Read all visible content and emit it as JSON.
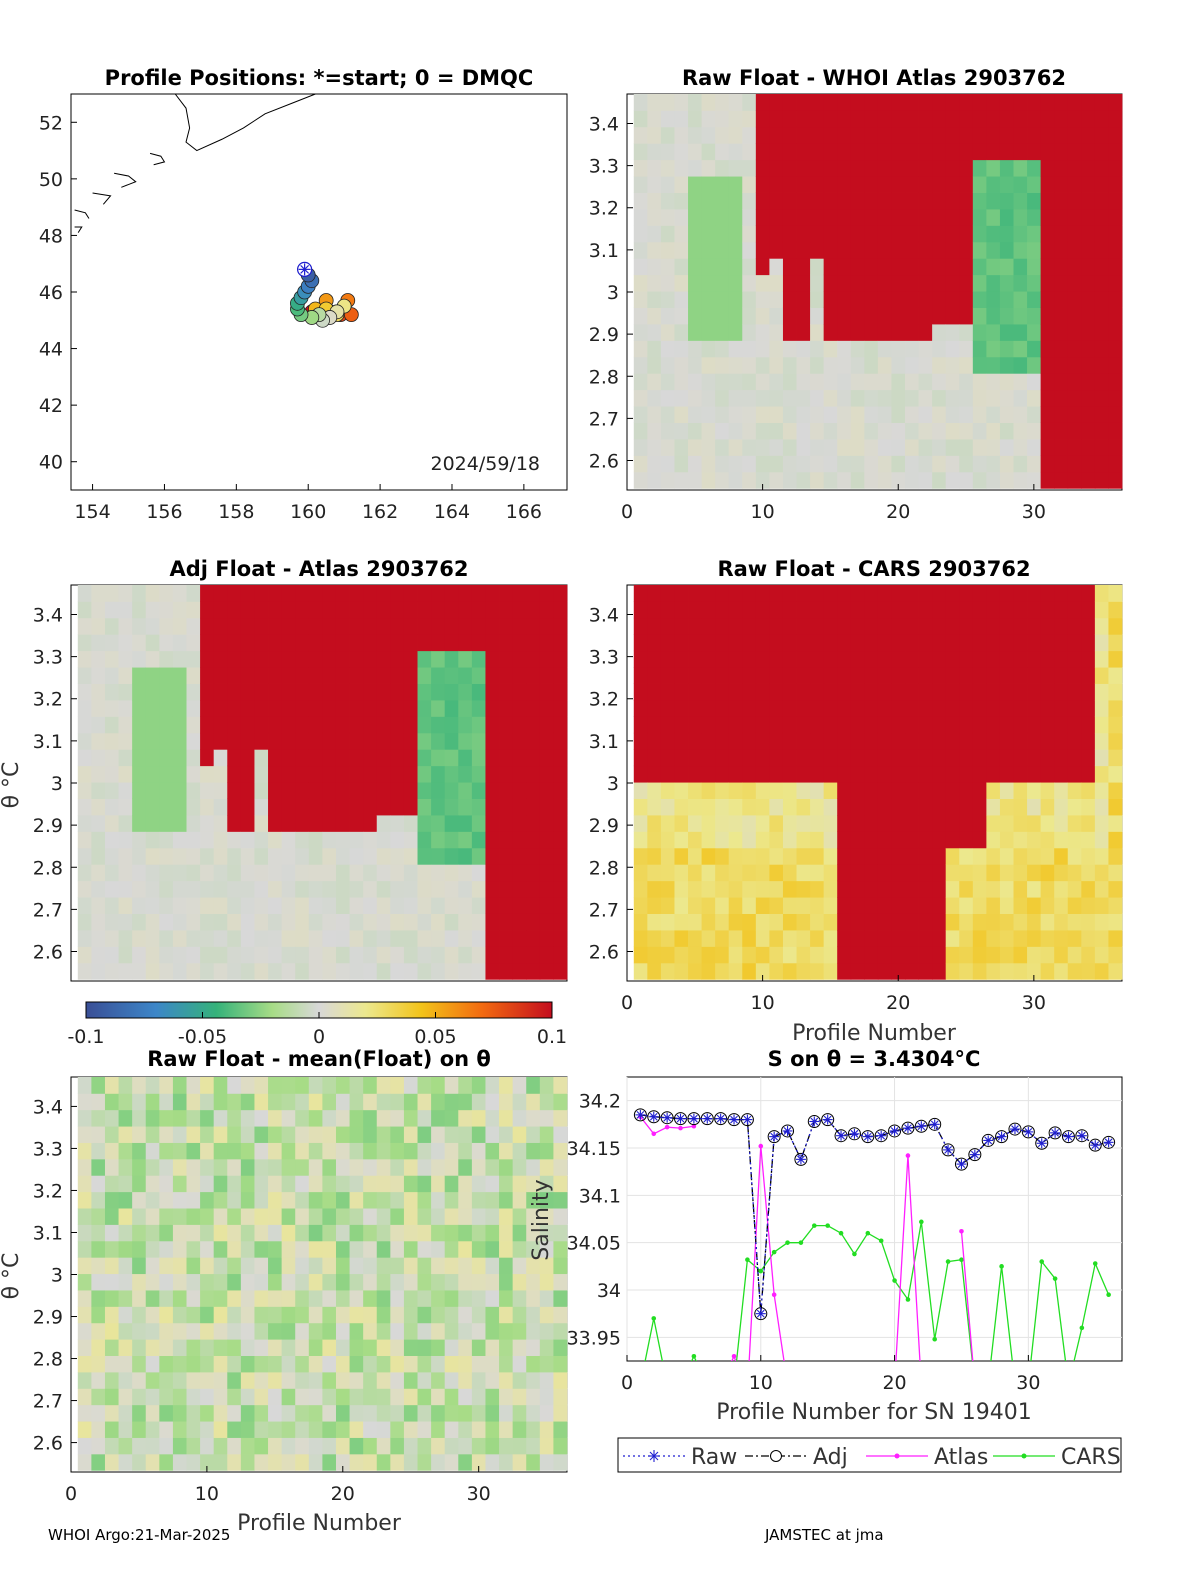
{
  "footer": {
    "left": "WHOI Argo:21-Mar-2025",
    "right": "JAMSTEC at jma"
  },
  "colorbar": {
    "ticks": [
      "-0.1",
      "-0.05",
      "0",
      "0.05",
      "0.1"
    ]
  },
  "chart_data": [
    {
      "id": "positions",
      "type": "scatter",
      "title": "Profile Positions: *=start; 0 = DMQC",
      "annotation": "2024/59/18",
      "xlim": [
        153.4,
        167.2
      ],
      "ylim": [
        39,
        53
      ],
      "x_ticks": [
        "154",
        "156",
        "158",
        "160",
        "162",
        "164",
        "166"
      ],
      "y_ticks": [
        "40",
        "42",
        "44",
        "46",
        "48",
        "50",
        "52"
      ],
      "grid": false,
      "points": [
        {
          "lon": 159.9,
          "lat": 46.8
        },
        {
          "lon": 160.0,
          "lat": 46.6
        },
        {
          "lon": 160.1,
          "lat": 46.4
        },
        {
          "lon": 160.0,
          "lat": 46.2
        },
        {
          "lon": 159.9,
          "lat": 46.0
        },
        {
          "lon": 159.8,
          "lat": 45.8
        },
        {
          "lon": 159.7,
          "lat": 45.6
        },
        {
          "lon": 159.7,
          "lat": 45.4
        },
        {
          "lon": 159.8,
          "lat": 45.2
        },
        {
          "lon": 160.1,
          "lat": 45.1
        },
        {
          "lon": 160.3,
          "lat": 45.2
        },
        {
          "lon": 160.4,
          "lat": 45.0
        },
        {
          "lon": 160.6,
          "lat": 45.1
        },
        {
          "lon": 160.8,
          "lat": 45.3
        },
        {
          "lon": 161.0,
          "lat": 45.5
        },
        {
          "lon": 160.8,
          "lat": 45.2
        },
        {
          "lon": 160.5,
          "lat": 45.4
        },
        {
          "lon": 160.2,
          "lat": 45.4
        },
        {
          "lon": 160.5,
          "lat": 45.7
        },
        {
          "lon": 161.1,
          "lat": 45.7
        },
        {
          "lon": 161.2,
          "lat": 45.2
        },
        {
          "lon": 160.9,
          "lat": 45.2
        },
        {
          "lon": 160.6,
          "lat": 45.3
        },
        {
          "lon": 160.1,
          "lat": 45.3
        }
      ]
    },
    {
      "id": "raw-whoi",
      "type": "heatmap",
      "title": "Raw Float - WHOI Atlas  2903762",
      "xlim": [
        0,
        36.5
      ],
      "ylim": [
        2.53,
        3.47
      ],
      "x_ticks": [
        "0",
        "10",
        "20",
        "30"
      ],
      "y_ticks": [
        "2.6",
        "2.7",
        "2.8",
        "2.9",
        "3",
        "3.1",
        "3.2",
        "3.3",
        "3.4"
      ],
      "clim": [
        -0.1,
        0.1
      ],
      "profiles": 36,
      "seed": 11,
      "xlabel": ""
    },
    {
      "id": "adj-atlas",
      "type": "heatmap",
      "title": "Adj Float - Atlas  2903762",
      "xlim": [
        0,
        36.5
      ],
      "ylim": [
        2.53,
        3.47
      ],
      "y_ticks": [
        "2.6",
        "2.7",
        "2.8",
        "2.9",
        "3",
        "3.1",
        "3.2",
        "3.3",
        "3.4"
      ],
      "ylabel": "θ °C",
      "clim": [
        -0.1,
        0.1
      ],
      "profiles": 36,
      "seed": 11
    },
    {
      "id": "raw-cars",
      "type": "heatmap",
      "title": "Raw Float - CARS  2903762",
      "xlim": [
        0,
        36.5
      ],
      "ylim": [
        2.53,
        3.47
      ],
      "x_ticks": [
        "0",
        "10",
        "20",
        "30"
      ],
      "y_ticks": [
        "2.6",
        "2.7",
        "2.8",
        "2.9",
        "3",
        "3.1",
        "3.2",
        "3.3",
        "3.4"
      ],
      "xlabel": "Profile Number",
      "clim": [
        -0.1,
        0.1
      ],
      "profiles": 36,
      "seed": 23
    },
    {
      "id": "raw-mean",
      "type": "heatmap",
      "title": "Raw Float - mean(Float) on θ",
      "xlim": [
        0,
        36.5
      ],
      "ylim": [
        2.53,
        3.47
      ],
      "x_ticks": [
        "0",
        "10",
        "20",
        "30"
      ],
      "y_ticks": [
        "2.6",
        "2.7",
        "2.8",
        "2.9",
        "3",
        "3.1",
        "3.2",
        "3.3",
        "3.4"
      ],
      "xlabel": "Profile Number",
      "ylabel": "θ °C",
      "clim": [
        -0.1,
        0.1
      ],
      "profiles": 36,
      "seed": 37
    },
    {
      "id": "salinity",
      "type": "line",
      "title": "S on θ = 3.4304°C",
      "xlabel": "Profile Number for SN 19401",
      "ylabel": "Salinity",
      "xlim": [
        0,
        37
      ],
      "ylim": [
        33.925,
        34.225
      ],
      "x_ticks": [
        "0",
        "10",
        "20",
        "30"
      ],
      "y_ticks": [
        "33.95",
        "34",
        "34.05",
        "34.1",
        "34.15",
        "34.2"
      ],
      "grid": true,
      "legend_position": "bottom",
      "x": [
        1,
        2,
        3,
        4,
        5,
        6,
        7,
        8,
        9,
        10,
        11,
        12,
        13,
        14,
        15,
        16,
        17,
        18,
        19,
        20,
        21,
        22,
        23,
        24,
        25,
        26,
        27,
        28,
        29,
        30,
        31,
        32,
        33,
        34,
        35,
        36
      ],
      "series": [
        {
          "name": "Raw",
          "color": "#1f1fd0",
          "values": [
            34.185,
            34.183,
            34.182,
            34.181,
            34.181,
            34.181,
            34.181,
            34.18,
            34.18,
            33.975,
            34.162,
            34.168,
            34.138,
            34.178,
            34.18,
            34.163,
            34.165,
            34.162,
            34.163,
            34.168,
            34.171,
            34.173,
            34.175,
            34.148,
            34.133,
            34.143,
            34.158,
            34.162,
            34.17,
            34.167,
            34.155,
            34.166,
            34.162,
            34.163,
            34.153,
            34.156
          ]
        },
        {
          "name": "Adj",
          "color": "#000000",
          "values": [
            34.185,
            34.183,
            34.182,
            34.181,
            34.181,
            34.181,
            34.181,
            34.18,
            34.18,
            33.975,
            34.162,
            34.168,
            34.138,
            34.178,
            34.18,
            34.163,
            34.165,
            34.162,
            34.163,
            34.168,
            34.171,
            34.173,
            34.175,
            34.148,
            34.133,
            34.143,
            34.158,
            34.162,
            34.17,
            34.167,
            34.155,
            34.166,
            34.162,
            34.163,
            34.153,
            34.156
          ]
        },
        {
          "name": "Atlas",
          "color": "#ff1fff",
          "values": [
            34.183,
            34.165,
            34.172,
            34.171,
            34.173,
            null,
            33.9,
            33.93,
            33.89,
            34.152,
            33.995,
            33.9,
            null,
            null,
            null,
            null,
            null,
            null,
            null,
            33.9,
            34.142,
            33.9,
            null,
            null,
            34.062,
            33.9,
            null,
            null,
            null,
            null,
            null,
            null,
            null,
            null,
            null,
            null
          ]
        },
        {
          "name": "CARS",
          "color": "#22dd22",
          "values": [
            33.9,
            33.97,
            33.9,
            33.9,
            33.93,
            33.9,
            33.9,
            33.9,
            34.032,
            34.02,
            34.04,
            34.05,
            34.05,
            34.068,
            34.068,
            34.06,
            34.038,
            34.06,
            34.052,
            34.01,
            33.99,
            34.072,
            33.948,
            34.03,
            34.032,
            33.9,
            33.9,
            34.025,
            33.9,
            33.9,
            34.03,
            34.012,
            33.9,
            33.96,
            34.028,
            33.995
          ]
        }
      ]
    }
  ]
}
